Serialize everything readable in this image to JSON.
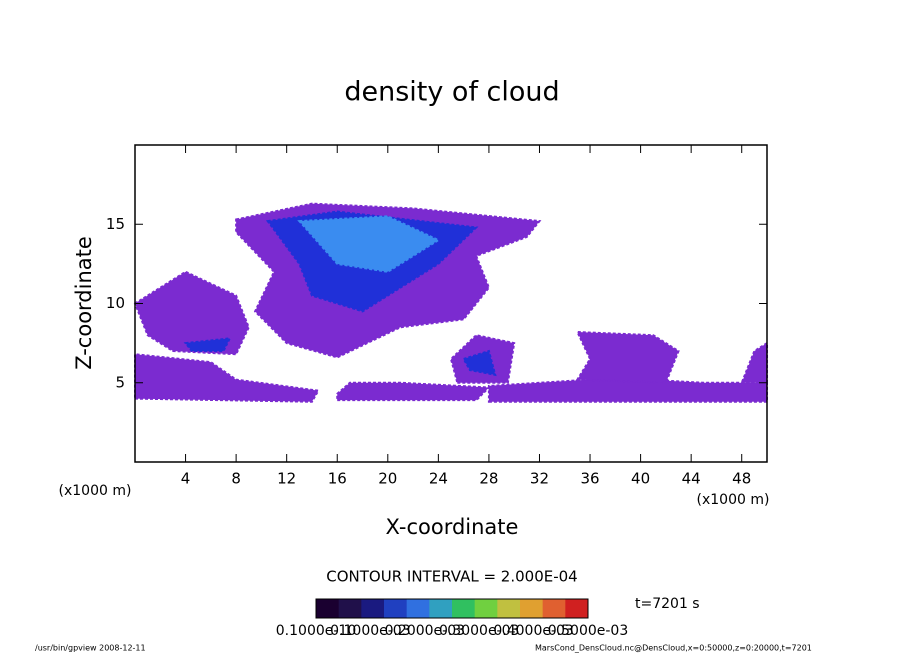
{
  "chart_data": {
    "type": "contour",
    "title": "density of cloud",
    "x_label": "X-coordinate",
    "y_label": "Z-coordinate",
    "x_unit": "(x1000 m)",
    "y_unit": "(x1000 m)",
    "xlim": [
      0,
      50
    ],
    "ylim": [
      0,
      20
    ],
    "xticks": [
      4,
      8,
      12,
      16,
      20,
      24,
      28,
      32,
      36,
      40,
      44,
      48
    ],
    "yticks": [
      5,
      10,
      15
    ],
    "regions": [
      {
        "level": 0.0001,
        "color": "#7b2bd0",
        "x": [
          0,
          14,
          14.5,
          8,
          6,
          0
        ],
        "z": [
          4,
          3.8,
          4.5,
          5.2,
          6.3,
          6.8
        ]
      },
      {
        "level": 0.0001,
        "color": "#7b2bd0",
        "x": [
          16,
          27,
          28,
          21,
          17,
          16
        ],
        "z": [
          3.9,
          3.9,
          4.7,
          5,
          5,
          4.3
        ]
      },
      {
        "level": 0.0001,
        "color": "#7b2bd0",
        "x": [
          28,
          50,
          50,
          45,
          38,
          28
        ],
        "z": [
          3.8,
          3.8,
          5,
          5,
          5.3,
          4.8
        ]
      },
      {
        "level": 0.0001,
        "color": "#7b2bd0",
        "x": [
          35,
          42,
          43,
          41,
          35,
          36
        ],
        "z": [
          5.2,
          5,
          7,
          8,
          8.2,
          6.5
        ]
      },
      {
        "level": 0.0001,
        "color": "#7b2bd0",
        "x": [
          48,
          50,
          50,
          49
        ],
        "z": [
          5,
          5,
          7.5,
          7
        ]
      },
      {
        "level": 0.0001,
        "color": "#7b2bd0",
        "x": [
          25.5,
          29.5,
          30,
          27,
          25
        ],
        "z": [
          5,
          5,
          7.5,
          8,
          6.5
        ]
      },
      {
        "level": 0.0001,
        "color": "#7b2bd0",
        "x": [
          0,
          4,
          8,
          9,
          8,
          3,
          1
        ],
        "z": [
          10,
          12,
          10.5,
          8.5,
          6.8,
          7,
          8
        ]
      },
      {
        "level": 0.0001,
        "color": "#7b2bd0",
        "x": [
          8,
          14,
          22,
          32,
          31,
          27,
          28,
          26,
          21,
          16,
          12,
          9.5,
          11,
          8
        ],
        "z": [
          15.3,
          16.3,
          16,
          15.2,
          14.2,
          13,
          11,
          9,
          8.5,
          6.6,
          7.5,
          9.5,
          12,
          14.5
        ]
      },
      {
        "level": 0.0003,
        "color": "#2030d8",
        "x": [
          10.5,
          16,
          27,
          24,
          18,
          14,
          13
        ],
        "z": [
          15.2,
          15.8,
          14.8,
          12.5,
          9.5,
          10.5,
          12.5
        ]
      },
      {
        "level": 0.0003,
        "color": "#2030d8",
        "x": [
          4,
          7.5,
          7,
          4.5
        ],
        "z": [
          7.5,
          7.8,
          7,
          7
        ]
      },
      {
        "level": 0.0003,
        "color": "#2030d8",
        "x": [
          26,
          28,
          28.5,
          26.5
        ],
        "z": [
          6.5,
          7,
          5.5,
          5.8
        ]
      },
      {
        "level": 0.0005,
        "color": "#3a8cf0",
        "x": [
          13,
          20,
          24,
          20,
          16
        ],
        "z": [
          15.2,
          15.5,
          14,
          12,
          12.5
        ]
      }
    ],
    "contour_interval": "CONTOUR INTERVAL = 2.000E-04",
    "colorbar": {
      "colors": [
        "#1a0030",
        "#20104a",
        "#1a1a80",
        "#2040c0",
        "#3070e0",
        "#30a0c0",
        "#30c060",
        "#70d040",
        "#c0c040",
        "#e0a030",
        "#e06030",
        "#d02020"
      ],
      "labels": [
        "0.1000e-10",
        "0.1000e-03",
        "0.2000e-03",
        "0.3000e-03",
        "0.4000e-03",
        "0.5000e-03"
      ]
    },
    "time": "t=7201 s",
    "footer_left": "/usr/bin/gpview   2008-12-11",
    "footer_right": "MarsCond_DensCloud.nc@DensCloud,x=0:50000,z=0:20000,t=7201"
  }
}
